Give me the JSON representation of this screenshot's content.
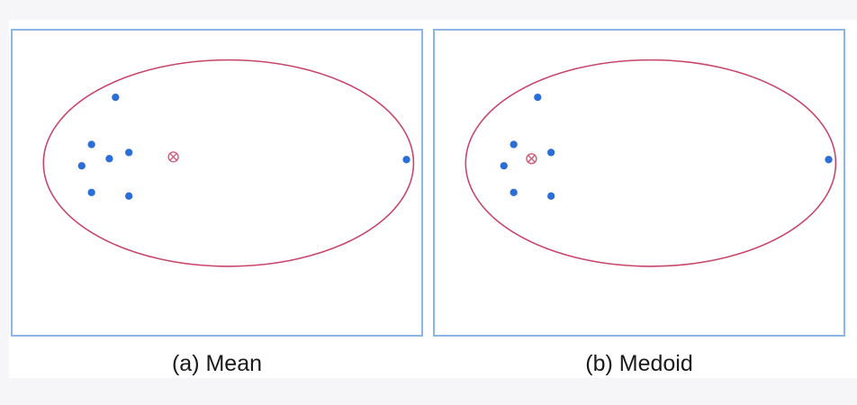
{
  "colors": {
    "point": "#2b6fd6",
    "cluster_boundary": "#c8456a",
    "center_marker": "#d35a7a",
    "panel_border": "#8cb6e6"
  },
  "panels": [
    {
      "caption": "(a) Mean",
      "center_marker_icon": "x-cross-marker",
      "points": [
        [
          115,
          75
        ],
        [
          88,
          128
        ],
        [
          130,
          137
        ],
        [
          108,
          144
        ],
        [
          77,
          152
        ],
        [
          88,
          182
        ],
        [
          130,
          186
        ],
        [
          442,
          145
        ]
      ],
      "center": [
        180,
        142
      ]
    },
    {
      "caption": "(b) Medoid",
      "center_marker_icon": "x-cross-marker",
      "points": [
        [
          115,
          75
        ],
        [
          88,
          128
        ],
        [
          130,
          137
        ],
        [
          77,
          152
        ],
        [
          88,
          182
        ],
        [
          130,
          186
        ],
        [
          442,
          145
        ]
      ],
      "center": [
        108,
        144
      ]
    }
  ]
}
